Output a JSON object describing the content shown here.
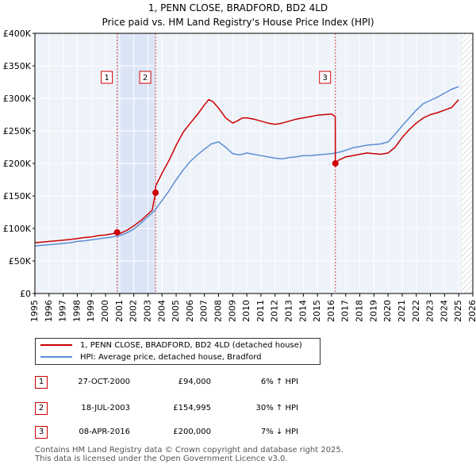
{
  "chart_data": {
    "type": "line",
    "title": "1, PENN CLOSE, BRADFORD, BD2 4LD",
    "subtitle": "Price paid vs. HM Land Registry's House Price Index (HPI)",
    "xlim": [
      1995,
      2026
    ],
    "ylim": [
      0,
      400000
    ],
    "x_ticks": [
      "1995",
      "1996",
      "1997",
      "1998",
      "1999",
      "2000",
      "2001",
      "2002",
      "2003",
      "2004",
      "2005",
      "2006",
      "2007",
      "2008",
      "2009",
      "2010",
      "2011",
      "2012",
      "2013",
      "2014",
      "2015",
      "2016",
      "2017",
      "2018",
      "2019",
      "2020",
      "2021",
      "2022",
      "2023",
      "2024",
      "2025",
      "2026"
    ],
    "y_ticks": [
      {
        "value": 0,
        "label": "£0"
      },
      {
        "value": 50000,
        "label": "£50K"
      },
      {
        "value": 100000,
        "label": "£100K"
      },
      {
        "value": 150000,
        "label": "£150K"
      },
      {
        "value": 200000,
        "label": "£200K"
      },
      {
        "value": 250000,
        "label": "£250K"
      },
      {
        "value": 300000,
        "label": "£300K"
      },
      {
        "value": 350000,
        "label": "£350K"
      },
      {
        "value": 400000,
        "label": "£400K"
      }
    ],
    "grid": true,
    "shaded_ranges": [
      [
        2000.82,
        2003.54
      ]
    ],
    "future_from": 2025.2,
    "series": [
      {
        "name": "1, PENN CLOSE, BRADFORD, BD2 4LD (detached house)",
        "color": "#cc0000",
        "x": [
          1995.0,
          1995.5,
          1996.0,
          1996.5,
          1997.0,
          1997.5,
          1998.0,
          1998.5,
          1999.0,
          1999.5,
          2000.0,
          2000.5,
          2000.82,
          2001.0,
          2001.5,
          2002.0,
          2002.5,
          2003.0,
          2003.3,
          2003.54,
          2003.55,
          2004.0,
          2004.5,
          2005.0,
          2005.5,
          2006.0,
          2006.5,
          2007.0,
          2007.3,
          2007.6,
          2008.0,
          2008.5,
          2009.0,
          2009.3,
          2009.7,
          2010.0,
          2010.5,
          2011.0,
          2011.5,
          2012.0,
          2012.5,
          2013.0,
          2013.5,
          2014.0,
          2014.5,
          2015.0,
          2015.5,
          2016.0,
          2016.26,
          2016.27,
          2016.5,
          2017.0,
          2017.5,
          2018.0,
          2018.5,
          2019.0,
          2019.5,
          2020.0,
          2020.5,
          2021.0,
          2021.5,
          2022.0,
          2022.5,
          2023.0,
          2023.5,
          2024.0,
          2024.5,
          2025.0
        ],
        "values": [
          78000,
          79000,
          80000,
          81000,
          82000,
          83000,
          84500,
          86000,
          87000,
          89000,
          90000,
          92000,
          94000,
          92000,
          97000,
          104000,
          112000,
          122000,
          128000,
          154995,
          165000,
          185000,
          205000,
          228000,
          248000,
          262000,
          275000,
          290000,
          298000,
          295000,
          285000,
          270000,
          262000,
          265000,
          270000,
          270000,
          268000,
          265000,
          262000,
          260000,
          262000,
          265000,
          268000,
          270000,
          272000,
          274000,
          275000,
          276000,
          272000,
          200000,
          205000,
          210000,
          212000,
          214000,
          216000,
          215000,
          214000,
          216000,
          225000,
          240000,
          252000,
          262000,
          270000,
          275000,
          278000,
          282000,
          286000,
          298000
        ]
      },
      {
        "name": "HPI: Average price, detached house, Bradford",
        "color": "#5b8fd4",
        "x": [
          1995.0,
          1995.5,
          1996.0,
          1996.5,
          1997.0,
          1997.5,
          1998.0,
          1998.5,
          1999.0,
          1999.5,
          2000.0,
          2000.5,
          2001.0,
          2001.5,
          2002.0,
          2002.5,
          2003.0,
          2003.5,
          2004.0,
          2004.5,
          2005.0,
          2005.5,
          2006.0,
          2006.5,
          2007.0,
          2007.5,
          2008.0,
          2008.5,
          2009.0,
          2009.5,
          2010.0,
          2010.5,
          2011.0,
          2011.5,
          2012.0,
          2012.5,
          2013.0,
          2013.5,
          2014.0,
          2014.5,
          2015.0,
          2015.5,
          2016.0,
          2016.5,
          2017.0,
          2017.5,
          2018.0,
          2018.5,
          2019.0,
          2019.5,
          2020.0,
          2020.5,
          2021.0,
          2021.5,
          2022.0,
          2022.5,
          2023.0,
          2023.5,
          2024.0,
          2024.5,
          2025.0
        ],
        "values": [
          73000,
          74000,
          75000,
          76000,
          77000,
          78000,
          80000,
          81000,
          82500,
          84000,
          85500,
          87000,
          89000,
          93000,
          99000,
          108000,
          118000,
          128000,
          143000,
          158000,
          175000,
          190000,
          203000,
          213000,
          222000,
          230000,
          233000,
          225000,
          215000,
          213000,
          216000,
          214000,
          212000,
          210000,
          208000,
          207000,
          209000,
          210000,
          212000,
          212000,
          213000,
          214000,
          215000,
          217000,
          220000,
          224000,
          226000,
          228000,
          229000,
          230000,
          233000,
          245000,
          258000,
          270000,
          282000,
          292000,
          297000,
          302000,
          308000,
          314000,
          318000
        ]
      }
    ],
    "sales": [
      {
        "marker": "1",
        "x": 2000.82,
        "value": 94000,
        "date": "27-OCT-2000",
        "price": "£94,000",
        "hpi": "6% ↑ HPI"
      },
      {
        "marker": "2",
        "x": 2003.54,
        "value": 154995,
        "date": "18-JUL-2003",
        "price": "£154,995",
        "hpi": "30% ↑ HPI"
      },
      {
        "marker": "3",
        "x": 2016.27,
        "value": 200000,
        "date": "08-APR-2016",
        "price": "£200,000",
        "hpi": "7% ↓ HPI"
      }
    ]
  },
  "legend": {
    "property": "1, PENN CLOSE, BRADFORD, BD2 4LD (detached house)",
    "hpi": "HPI: Average price, detached house, Bradford"
  },
  "footer": {
    "line1": "Contains HM Land Registry data © Crown copyright and database right 2025.",
    "line2": "This data is licensed under the Open Government Licence v3.0."
  }
}
